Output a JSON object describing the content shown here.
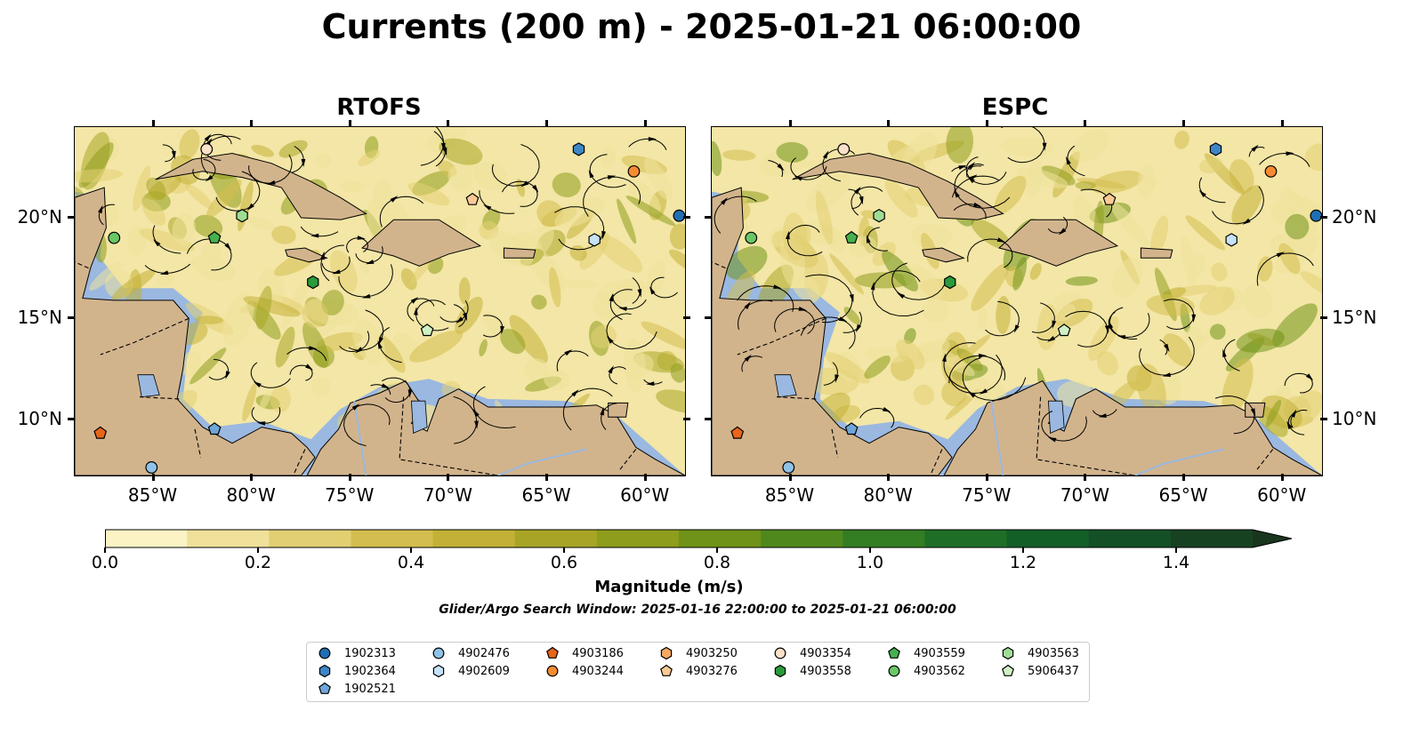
{
  "title": "Currents (200 m) - 2025-01-21 06:00:00",
  "panels": [
    {
      "title": "RTOFS"
    },
    {
      "title": "ESPC"
    }
  ],
  "axes": {
    "x_ticks": [
      "85°W",
      "80°W",
      "75°W",
      "70°W",
      "65°W",
      "60°W"
    ],
    "y_ticks": [
      "20°N",
      "15°N",
      "10°N"
    ],
    "lon_values": [
      -85,
      -80,
      -75,
      -70,
      -65,
      -60
    ],
    "lat_values": [
      20,
      15,
      10
    ],
    "lon_range": [
      -89,
      -58
    ],
    "lat_range": [
      7.2,
      24.5
    ]
  },
  "colorbar": {
    "label": "Magnitude (m/s)",
    "ticks": [
      "0.0",
      "0.2",
      "0.4",
      "0.6",
      "0.8",
      "1.0",
      "1.2",
      "1.4"
    ],
    "tick_values": [
      0.0,
      0.2,
      0.4,
      0.6,
      0.8,
      1.0,
      1.2,
      1.4
    ],
    "range": [
      0.0,
      1.5
    ],
    "extend": "max",
    "colors": [
      "#fbf3c4",
      "#efe19a",
      "#e2cf72",
      "#d4bd4f",
      "#c2b136",
      "#a8a526",
      "#8e9d1c",
      "#6f9318",
      "#4f891d",
      "#337d22",
      "#1e6e26",
      "#135f28",
      "#145026",
      "#174222",
      "#1a351e"
    ]
  },
  "subtitle": "Glider/Argo Search Window: 2025-01-16 22:00:00 to 2025-01-21 06:00:00",
  "colors": {
    "ocean": "#9ab8e0",
    "land": "#d2b48c",
    "current_field": "#f3e6a6"
  },
  "legend": {
    "placement": "bottom-center",
    "columns": [
      [
        {
          "id": "1902313",
          "marker": "circle",
          "color": "#1f6fb4"
        },
        {
          "id": "1902364",
          "marker": "hexagon",
          "color": "#3d86c6"
        },
        {
          "id": "1902521",
          "marker": "pentagon",
          "color": "#6fa6d8"
        }
      ],
      [
        {
          "id": "4902476",
          "marker": "circle",
          "color": "#8fc2e8"
        },
        {
          "id": "4902609",
          "marker": "hexagon",
          "color": "#c6e2f7"
        }
      ],
      [
        {
          "id": "4903186",
          "marker": "pentagon",
          "color": "#e8651a"
        },
        {
          "id": "4903244",
          "marker": "circle",
          "color": "#f58b31"
        }
      ],
      [
        {
          "id": "4903250",
          "marker": "hexagon",
          "color": "#f7a863"
        },
        {
          "id": "4903276",
          "marker": "pentagon",
          "color": "#fbc995"
        }
      ],
      [
        {
          "id": "4903354",
          "marker": "circle",
          "color": "#fde0c8"
        },
        {
          "id": "4903558",
          "marker": "hexagon",
          "color": "#2a9a3a"
        }
      ],
      [
        {
          "id": "4903559",
          "marker": "pentagon",
          "color": "#46b04f"
        },
        {
          "id": "4903562",
          "marker": "circle",
          "color": "#69c767"
        }
      ],
      [
        {
          "id": "4903563",
          "marker": "hexagon",
          "color": "#9fdd95"
        },
        {
          "id": "5906437",
          "marker": "pentagon",
          "color": "#cff0c4"
        }
      ]
    ]
  },
  "floats": [
    {
      "id": "4903354",
      "lon": -82.3,
      "lat": 23.4
    },
    {
      "id": "1902364",
      "lon": -63.4,
      "lat": 23.4
    },
    {
      "id": "4903244",
      "lon": -60.6,
      "lat": 22.3
    },
    {
      "id": "4903276",
      "lon": -68.8,
      "lat": 20.9
    },
    {
      "id": "1902313",
      "lon": -58.3,
      "lat": 20.1
    },
    {
      "id": "4903563",
      "lon": -80.5,
      "lat": 20.1
    },
    {
      "id": "4903562",
      "lon": -87.0,
      "lat": 19.0
    },
    {
      "id": "4903559",
      "lon": -81.9,
      "lat": 19.0
    },
    {
      "id": "4902609",
      "lon": -62.6,
      "lat": 18.9
    },
    {
      "id": "4903558",
      "lon": -76.9,
      "lat": 16.8
    },
    {
      "id": "5906437",
      "lon": -71.1,
      "lat": 14.4
    },
    {
      "id": "1902521",
      "lon": -81.9,
      "lat": 9.5
    },
    {
      "id": "4903186",
      "lon": -87.7,
      "lat": 9.3
    },
    {
      "id": "4902476",
      "lon": -85.1,
      "lat": 7.6
    }
  ]
}
